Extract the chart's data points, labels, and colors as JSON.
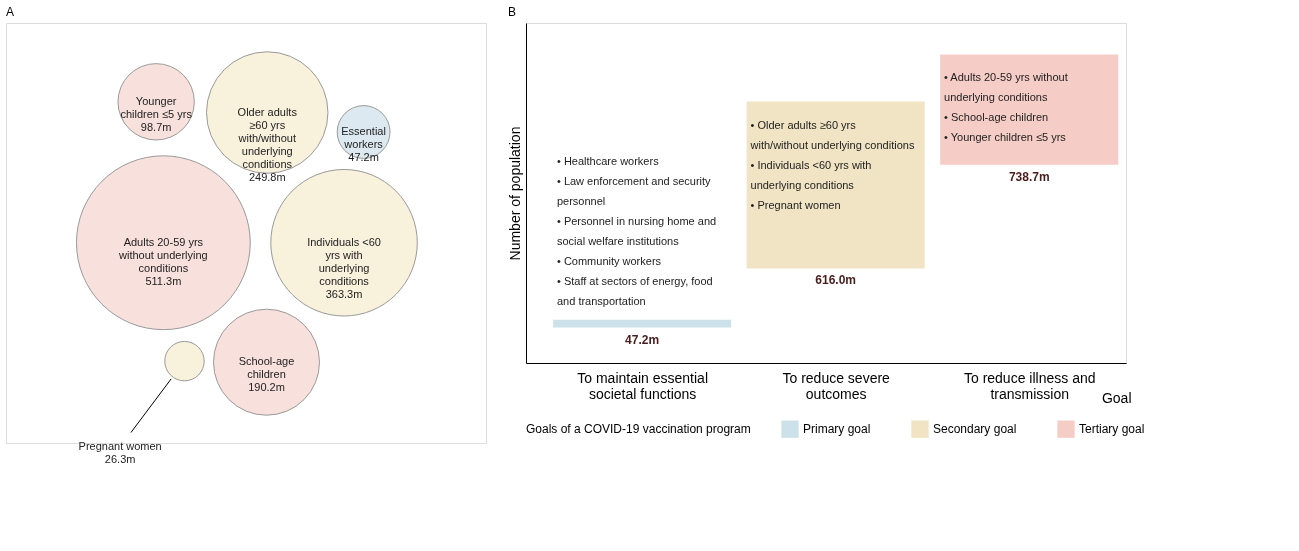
{
  "chart_data": [
    {
      "type": "other",
      "title": "A",
      "categories": [
        "Adults 20-59 yrs without underlying conditions",
        "Individuals <60 yrs with underlying conditions",
        "Older adults ≥60 yrs with/without underlying conditions",
        "School-age children",
        "Younger children ≤5 yrs",
        "Essential workers",
        "Pregnant women"
      ],
      "values": [
        511.3,
        363.3,
        249.8,
        190.2,
        98.7,
        47.2,
        26.3
      ],
      "value_labels": [
        "511.3m",
        "363.3m",
        "249.8m",
        "190.2m",
        "98.7m",
        "47.2m",
        "26.3m"
      ],
      "colors": [
        "#f8e0dc",
        "#f8f1dc",
        "#f8f1dc",
        "#f8e0dc",
        "#f8e0dc",
        "#dde9f0",
        "#f8f1dc"
      ]
    },
    {
      "type": "other",
      "title": "B",
      "categories": [
        "To maintain essential societal functions",
        "To reduce severe outcomes",
        "To reduce illness and transmission"
      ],
      "xlabel": "Goal",
      "ylabel": "Number of population",
      "legend_title": "Goals of a COVID-19 vaccination program",
      "legend": "bottom",
      "series": [
        {
          "name": "Primary goal",
          "color": "#cde1ea",
          "values": [
            47.2,
            null,
            null
          ],
          "value_labels": [
            "47.2m",
            null,
            null
          ]
        },
        {
          "name": "Secondary goal",
          "color": "#f0e4c4",
          "values": [
            null,
            616.0,
            null
          ],
          "value_labels": [
            null,
            "616.0m",
            null
          ]
        },
        {
          "name": "Tertiary goal",
          "color": "#f6cdc6",
          "values": [
            null,
            null,
            738.7
          ],
          "value_labels": [
            null,
            null,
            "738.7m"
          ]
        }
      ],
      "annotations": [
        {
          "text": "• Healthcare workers",
          "x": "To maintain essential societal functions"
        },
        {
          "text": "• Law enforcement and security personnel",
          "x": "To maintain essential societal functions"
        },
        {
          "text": "• Personnel in nursing home and social welfare institutions",
          "x": "To maintain essential societal functions"
        },
        {
          "text": "• Community workers",
          "x": "To maintain essential societal functions"
        },
        {
          "text": "• Staff at sectors of energy, food and transportation",
          "x": "To maintain essential societal functions"
        },
        {
          "text": "• Older adults ≥60 yrs with/without underlying conditions",
          "x": "To reduce severe outcomes"
        },
        {
          "text": "• Individuals <60 yrs with underlying conditions",
          "x": "To reduce severe outcomes"
        },
        {
          "text": "• Pregnant women",
          "x": "To reduce severe outcomes"
        },
        {
          "text": "• Adults 20-59 yrs without underlying conditions",
          "x": "To reduce illness and transmission"
        },
        {
          "text": "• School-age children",
          "x": "To reduce illness and transmission"
        },
        {
          "text": "• Younger children ≤5 yrs",
          "x": "To reduce illness and transmission"
        }
      ]
    }
  ]
}
